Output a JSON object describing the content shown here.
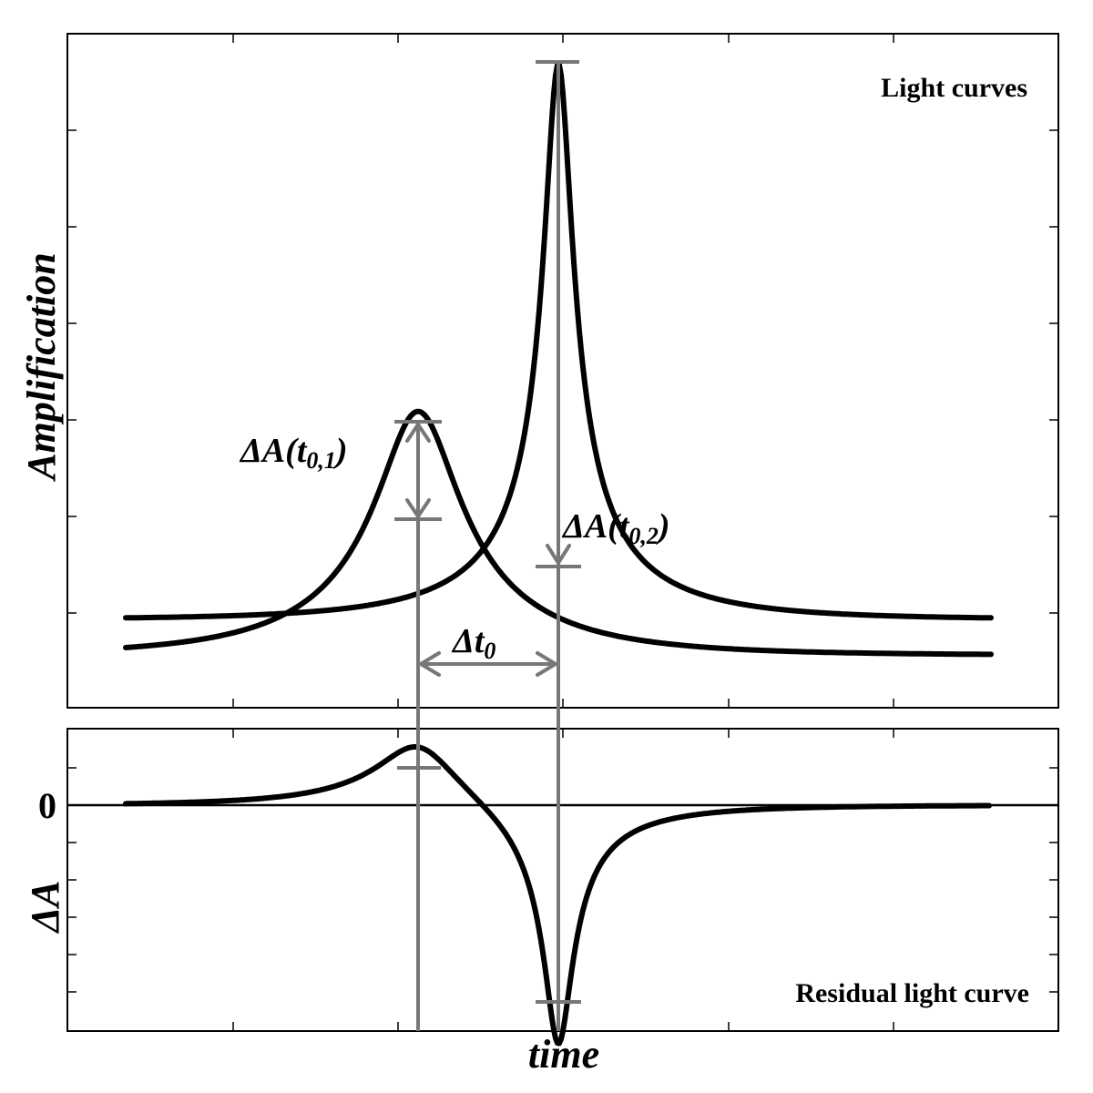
{
  "top_panel": {
    "title": "Light curves",
    "ylabel": "Amplification"
  },
  "bottom_panel": {
    "title": "Residual light curve",
    "ylabel": "ΔA",
    "zero_label": "0"
  },
  "xlabel": "time",
  "annotations": {
    "dA1": {
      "main": "ΔA(t",
      "sub": "0,1",
      "close": ")"
    },
    "dA2": {
      "main": "ΔA(t",
      "sub": "0,2",
      "close": ")"
    },
    "dt0": {
      "main": "Δt",
      "sub": "0"
    }
  },
  "colors": {
    "curves": "#000000",
    "guides": "#777777"
  }
}
